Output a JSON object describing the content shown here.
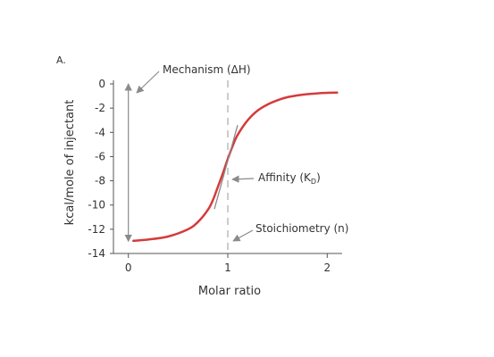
{
  "chart_data": {
    "type": "line",
    "panel_label": "A.",
    "title": "",
    "xlabel": "Molar ratio",
    "ylabel": "kcal/mole of injectant",
    "xlim": [
      -0.15,
      2.15
    ],
    "ylim": [
      -14,
      0
    ],
    "xticks": [
      0,
      1,
      2
    ],
    "yticks": [
      0,
      -2,
      -4,
      -6,
      -8,
      -10,
      -12,
      -14
    ],
    "grid": false,
    "legend": "none",
    "series": [
      {
        "color": "#d63a3a",
        "x": [
          0.05,
          0.2,
          0.4,
          0.6,
          0.7,
          0.8,
          0.85,
          0.9,
          0.95,
          1.0,
          1.05,
          1.1,
          1.2,
          1.3,
          1.4,
          1.5,
          1.6,
          1.7,
          1.8,
          1.9,
          2.0,
          2.1
        ],
        "y": [
          -12.95,
          -12.85,
          -12.6,
          -12.0,
          -11.4,
          -10.4,
          -9.6,
          -8.5,
          -7.4,
          -6.2,
          -5.1,
          -4.2,
          -3.0,
          -2.2,
          -1.7,
          -1.35,
          -1.1,
          -0.95,
          -0.85,
          -0.78,
          -0.74,
          -0.72
        ]
      }
    ],
    "annotations": {
      "mechanism": {
        "text": "Mechanism (ΔH)",
        "range": [
          0,
          -13
        ]
      },
      "affinity": {
        "text": "Affinity (K",
        "subscript": "D",
        "suffix": ")",
        "x": 1.0,
        "y": -6.2
      },
      "stoichiometry": {
        "text": "Stoichiometry (n)",
        "x": 1.0
      }
    },
    "reference_line_x": 1.0,
    "colors": {
      "curve": "#d63a3a",
      "axis": "#555555",
      "annotation": "#8a8a8a",
      "text": "#333333"
    }
  }
}
